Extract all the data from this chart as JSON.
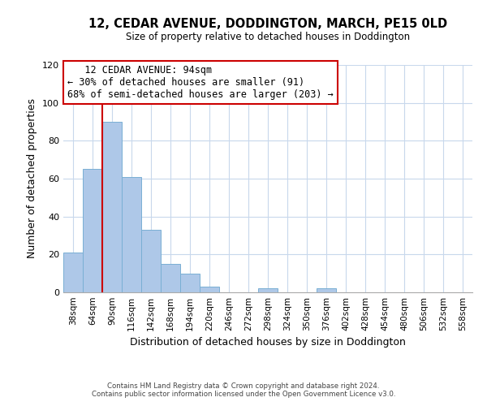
{
  "title": "12, CEDAR AVENUE, DODDINGTON, MARCH, PE15 0LD",
  "subtitle": "Size of property relative to detached houses in Doddington",
  "xlabel": "Distribution of detached houses by size in Doddington",
  "ylabel": "Number of detached properties",
  "bar_labels": [
    "38sqm",
    "64sqm",
    "90sqm",
    "116sqm",
    "142sqm",
    "168sqm",
    "194sqm",
    "220sqm",
    "246sqm",
    "272sqm",
    "298sqm",
    "324sqm",
    "350sqm",
    "376sqm",
    "402sqm",
    "428sqm",
    "454sqm",
    "480sqm",
    "506sqm",
    "532sqm",
    "558sqm"
  ],
  "bar_values": [
    21,
    65,
    90,
    61,
    33,
    15,
    10,
    3,
    0,
    0,
    2,
    0,
    0,
    2,
    0,
    0,
    0,
    0,
    0,
    0,
    0
  ],
  "bar_color": "#aec8e8",
  "bar_edge_color": "#7aafd4",
  "vline_x_index": 2,
  "vline_color": "#cc0000",
  "ylim": [
    0,
    120
  ],
  "yticks": [
    0,
    20,
    40,
    60,
    80,
    100,
    120
  ],
  "annotation_title": "12 CEDAR AVENUE: 94sqm",
  "annotation_line1": "← 30% of detached houses are smaller (91)",
  "annotation_line2": "68% of semi-detached houses are larger (203) →",
  "annotation_box_color": "#ffffff",
  "annotation_box_edge": "#cc0000",
  "footer_line1": "Contains HM Land Registry data © Crown copyright and database right 2024.",
  "footer_line2": "Contains public sector information licensed under the Open Government Licence v3.0.",
  "bg_color": "#ffffff",
  "grid_color": "#c8d8ec"
}
